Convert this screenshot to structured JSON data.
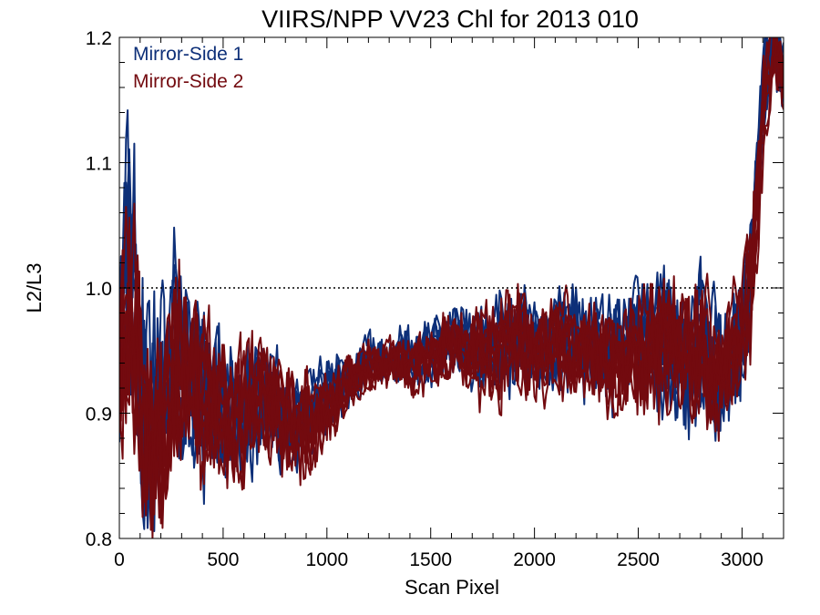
{
  "chart_data": {
    "type": "line",
    "title": "VIIRS/NPP VV23 Chl for 2013 010",
    "xlabel": "Scan Pixel",
    "ylabel": "L2/L3",
    "xlim": [
      0,
      3200
    ],
    "ylim": [
      0.8,
      1.2
    ],
    "x_ticks": [
      0,
      500,
      1000,
      1500,
      2000,
      2500,
      3000
    ],
    "y_ticks": [
      0.8,
      0.9,
      1.0,
      1.1,
      1.2
    ],
    "x_tick_labels": [
      "0",
      "500",
      "1000",
      "1500",
      "2000",
      "2500",
      "3000"
    ],
    "y_tick_labels": [
      "0.8",
      "0.9",
      "1.0",
      "1.1",
      "1.2"
    ],
    "reference_line": {
      "y": 1.0,
      "style": "dotted",
      "color": "#000000"
    },
    "legend_position": "top-left",
    "series": [
      {
        "name": "Mirror-Side 1",
        "color": "#0d2f78",
        "envelope": {
          "x": [
            0,
            50,
            100,
            150,
            200,
            260,
            300,
            400,
            500,
            600,
            700,
            800,
            900,
            1000,
            1100,
            1200,
            1300,
            1400,
            1500,
            1600,
            1700,
            1800,
            1900,
            2000,
            2100,
            2200,
            2300,
            2400,
            2500,
            2600,
            2700,
            2800,
            2900,
            3000,
            3050,
            3100,
            3150,
            3200
          ],
          "mean": [
            0.96,
            1.02,
            0.92,
            0.88,
            0.9,
            0.97,
            0.95,
            0.91,
            0.9,
            0.91,
            0.92,
            0.9,
            0.9,
            0.91,
            0.93,
            0.94,
            0.94,
            0.945,
            0.95,
            0.96,
            0.95,
            0.95,
            0.96,
            0.955,
            0.96,
            0.955,
            0.95,
            0.95,
            0.96,
            0.96,
            0.95,
            0.95,
            0.94,
            0.96,
            1.03,
            1.15,
            1.2,
            1.16
          ],
          "spread": [
            0.08,
            0.1,
            0.1,
            0.09,
            0.08,
            0.08,
            0.07,
            0.06,
            0.05,
            0.045,
            0.04,
            0.04,
            0.035,
            0.03,
            0.02,
            0.018,
            0.018,
            0.02,
            0.022,
            0.025,
            0.03,
            0.035,
            0.04,
            0.035,
            0.035,
            0.035,
            0.04,
            0.04,
            0.045,
            0.05,
            0.05,
            0.055,
            0.055,
            0.05,
            0.05,
            0.04,
            0.03,
            0.03
          ]
        }
      },
      {
        "name": "Mirror-Side 2",
        "color": "#730a0f",
        "envelope": {
          "x": [
            0,
            50,
            100,
            150,
            200,
            260,
            300,
            400,
            500,
            600,
            700,
            800,
            900,
            1000,
            1100,
            1200,
            1300,
            1400,
            1500,
            1600,
            1700,
            1800,
            1900,
            2000,
            2100,
            2200,
            2300,
            2400,
            2500,
            2600,
            2700,
            2800,
            2900,
            3000,
            3050,
            3100,
            3150,
            3200
          ],
          "mean": [
            0.94,
            1.0,
            0.9,
            0.87,
            0.88,
            0.95,
            0.94,
            0.9,
            0.89,
            0.9,
            0.91,
            0.89,
            0.89,
            0.9,
            0.925,
            0.935,
            0.94,
            0.94,
            0.945,
            0.955,
            0.95,
            0.95,
            0.955,
            0.95,
            0.955,
            0.95,
            0.945,
            0.945,
            0.955,
            0.955,
            0.945,
            0.945,
            0.935,
            0.955,
            1.02,
            1.14,
            1.19,
            1.17
          ],
          "spread": [
            0.08,
            0.1,
            0.1,
            0.09,
            0.08,
            0.08,
            0.07,
            0.06,
            0.05,
            0.045,
            0.04,
            0.04,
            0.035,
            0.03,
            0.02,
            0.018,
            0.018,
            0.02,
            0.022,
            0.025,
            0.03,
            0.035,
            0.04,
            0.035,
            0.035,
            0.035,
            0.04,
            0.04,
            0.045,
            0.05,
            0.05,
            0.055,
            0.055,
            0.05,
            0.05,
            0.04,
            0.03,
            0.03
          ]
        },
        "line_count": 8
      }
    ]
  }
}
